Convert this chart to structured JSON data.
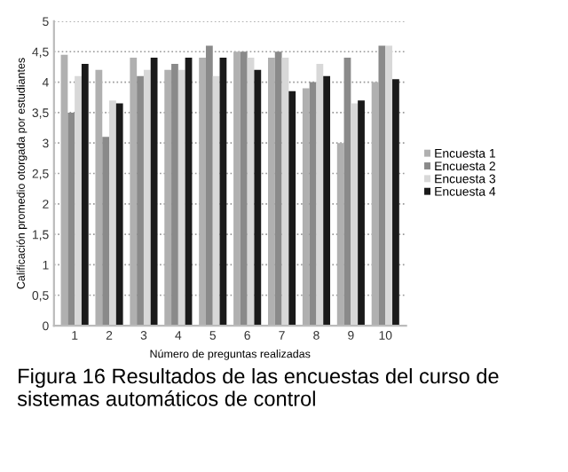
{
  "chart_data": {
    "type": "bar",
    "xlabel": "Número de preguntas realizadas",
    "ylabel": "Calificación promedio otorgada por estudiantes",
    "categories": [
      "1",
      "2",
      "3",
      "4",
      "5",
      "6",
      "7",
      "8",
      "9",
      "10"
    ],
    "series": [
      {
        "name": "Encuesta 1",
        "color": "#b0b0b0",
        "values": [
          4.45,
          4.2,
          4.4,
          4.2,
          4.4,
          4.5,
          4.4,
          3.9,
          3.0,
          4.0
        ]
      },
      {
        "name": "Encuesta 2",
        "color": "#8a8a8a",
        "values": [
          3.5,
          3.1,
          4.1,
          4.3,
          4.6,
          4.5,
          4.5,
          4.0,
          4.4,
          4.6
        ]
      },
      {
        "name": "Encuesta 3",
        "color": "#d8d8d8",
        "values": [
          4.1,
          3.7,
          4.2,
          4.2,
          4.1,
          4.4,
          4.4,
          4.3,
          3.65,
          4.6
        ]
      },
      {
        "name": "Encuesta 4",
        "color": "#1a1a1a",
        "values": [
          4.3,
          3.65,
          4.4,
          4.4,
          4.4,
          4.2,
          3.85,
          4.1,
          3.7,
          4.05
        ]
      }
    ],
    "ylim": [
      0,
      5
    ],
    "yticks": [
      0,
      {
        "value": 0.5,
        "label": "0,5"
      },
      1,
      {
        "value": 1.5,
        "label": "1,5"
      },
      2,
      {
        "value": 2.5,
        "label": "2,5"
      },
      3,
      {
        "value": 3.5,
        "label": "3,5"
      },
      4,
      {
        "value": 4.5,
        "label": "4,5"
      },
      5
    ],
    "grid": "y",
    "legend": "right",
    "annotations": [
      "Figura 16 Resultados de las encuestas del curso de sistemas automáticos de control"
    ]
  }
}
